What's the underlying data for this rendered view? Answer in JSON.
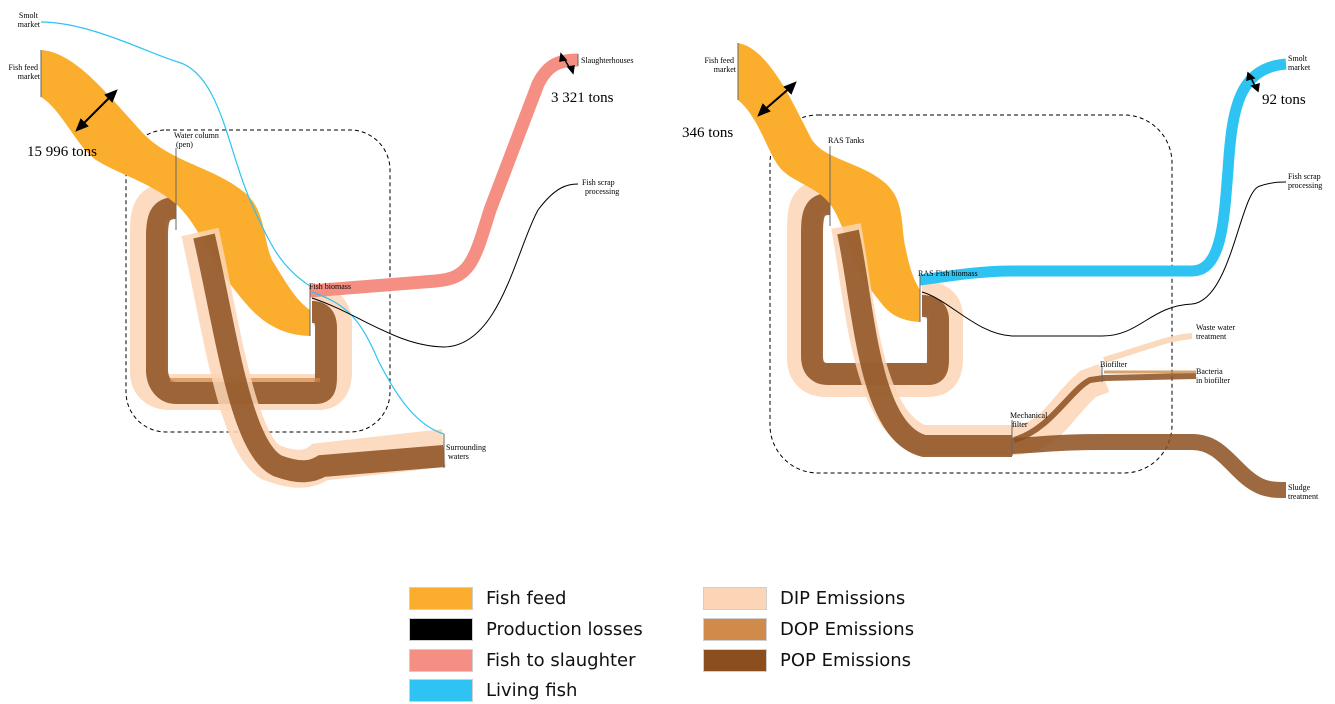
{
  "colors": {
    "fish_feed": "#FBAE2E",
    "production_losses": "#000000",
    "fish_to_slaughter": "#F58F84",
    "living_fish": "#2EC3F2",
    "dip_emissions": "#FBD5B5",
    "dop_emissions": "#D08A4A",
    "pop_emissions": "#8B4F1F"
  },
  "left_diagram": {
    "nodes": {
      "smolt_market": [
        "Smolt",
        "market"
      ],
      "fish_feed_market": [
        "Fish feed",
        "market"
      ],
      "water_column": [
        "Water column",
        "(pen)"
      ],
      "fish_biomass": "Fish biomass",
      "slaughterhouses": "Slaughterhouses",
      "fish_scrap_processing": [
        "Fish scrap",
        "processing"
      ],
      "surrounding_waters": [
        "Surrounding",
        "waters"
      ]
    },
    "annotations": {
      "feed_amount": "15 996 tons",
      "slaughter_amount": "3 321 tons"
    }
  },
  "right_diagram": {
    "nodes": {
      "fish_feed_market": [
        "Fish feed",
        "market"
      ],
      "ras_tanks": "RAS Tanks",
      "ras_fish_biomass": "RAS Fish biomass",
      "smolt_market": [
        "Smolt",
        "market"
      ],
      "fish_scrap_processing": [
        "Fish scrap",
        "processing"
      ],
      "waste_water_treatment": [
        "Waste water",
        "treatment"
      ],
      "biofilter": "Biofilter",
      "bacteria_in_biofilter": [
        "Bacteria",
        "in biofilter"
      ],
      "mechanical_filter": [
        "Mechanical",
        "filter"
      ],
      "sludge_treatment": [
        "Sludge",
        "treatment"
      ]
    },
    "annotations": {
      "feed_amount": "346 tons",
      "smolt_amount": "92 tons"
    }
  },
  "legend": [
    {
      "label": "Fish feed",
      "color": "#FBAE2E"
    },
    {
      "label": "Production losses",
      "color": "#000000"
    },
    {
      "label": "Fish to slaughter",
      "color": "#F58F84"
    },
    {
      "label": "Living fish",
      "color": "#2EC3F2"
    },
    {
      "label": "DIP Emissions",
      "color": "#FBD5B5"
    },
    {
      "label": "DOP Emissions",
      "color": "#D08A4A"
    },
    {
      "label": "POP Emissions",
      "color": "#8B4F1F"
    }
  ]
}
